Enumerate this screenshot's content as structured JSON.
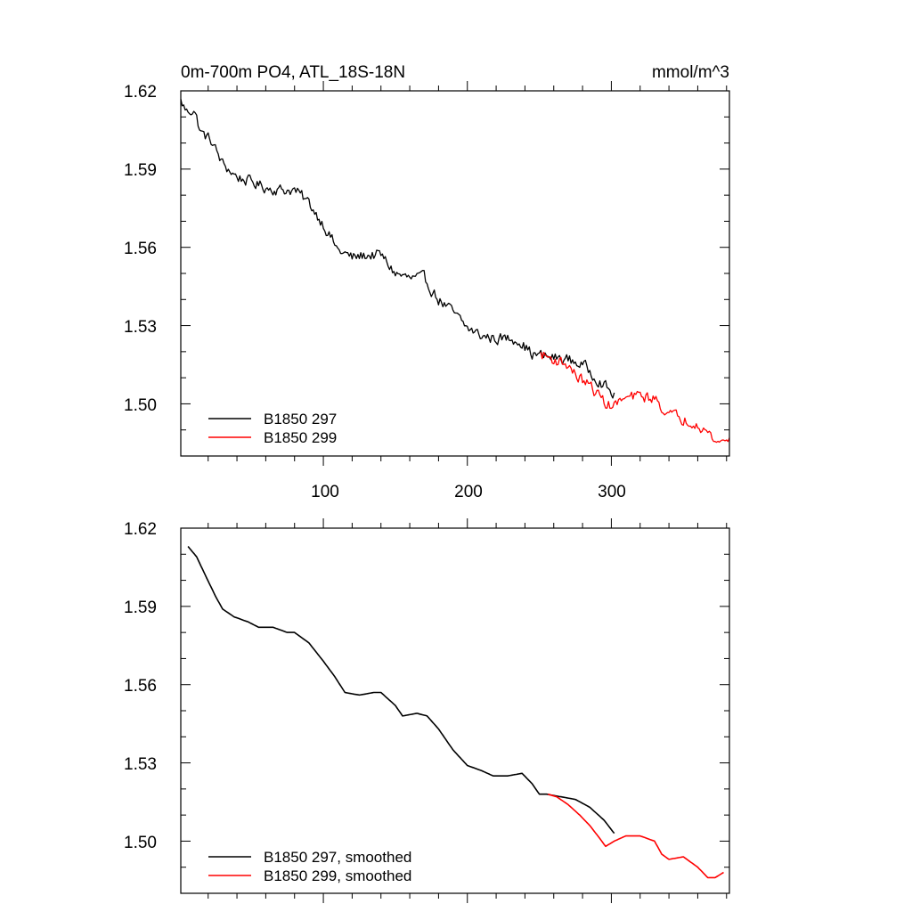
{
  "chart_data": [
    {
      "type": "line",
      "title_left": "0m-700m PO4, ATL_18S-18N",
      "title_right": "mmol/m^3",
      "xlim": [
        1,
        382
      ],
      "ylim": [
        1.48,
        1.62
      ],
      "yticks": [
        "1.62",
        "1.59",
        "1.56",
        "1.53",
        "1.50"
      ],
      "ytick_values": [
        1.62,
        1.59,
        1.56,
        1.53,
        1.5
      ],
      "xticks": [
        "100",
        "200",
        "300"
      ],
      "xtick_values": [
        100,
        200,
        300
      ],
      "legend_position": "bottom-left",
      "noise": 0.0035,
      "series": [
        {
          "name": "B1850 297",
          "color": "#000000",
          "x_start": 1,
          "x_step": 1,
          "anchors": [
            [
              1,
              1.616
            ],
            [
              5,
              1.612
            ],
            [
              10,
              1.613
            ],
            [
              15,
              1.604
            ],
            [
              22,
              1.601
            ],
            [
              30,
              1.592
            ],
            [
              40,
              1.587
            ],
            [
              50,
              1.585
            ],
            [
              60,
              1.583
            ],
            [
              70,
              1.582
            ],
            [
              80,
              1.582
            ],
            [
              90,
              1.577
            ],
            [
              100,
              1.569
            ],
            [
              110,
              1.559
            ],
            [
              120,
              1.556
            ],
            [
              130,
              1.557
            ],
            [
              140,
              1.557
            ],
            [
              150,
              1.55
            ],
            [
              160,
              1.548
            ],
            [
              170,
              1.548
            ],
            [
              180,
              1.54
            ],
            [
              190,
              1.535
            ],
            [
              200,
              1.529
            ],
            [
              210,
              1.526
            ],
            [
              220,
              1.525
            ],
            [
              235,
              1.525
            ],
            [
              245,
              1.519
            ],
            [
              255,
              1.518
            ],
            [
              270,
              1.517
            ],
            [
              280,
              1.515
            ],
            [
              290,
              1.51
            ],
            [
              302,
              1.503
            ]
          ]
        },
        {
          "name": "B1850 299",
          "color": "#ff0000",
          "x_start": 251,
          "x_step": 1,
          "anchors": [
            [
              251,
              1.519
            ],
            [
              260,
              1.517
            ],
            [
              270,
              1.515
            ],
            [
              275,
              1.511
            ],
            [
              285,
              1.507
            ],
            [
              295,
              1.501
            ],
            [
              300,
              1.499
            ],
            [
              310,
              1.502
            ],
            [
              320,
              1.503
            ],
            [
              330,
              1.502
            ],
            [
              340,
              1.496
            ],
            [
              350,
              1.494
            ],
            [
              360,
              1.493
            ],
            [
              370,
              1.487
            ],
            [
              375,
              1.485
            ],
            [
              382,
              1.487
            ]
          ]
        }
      ]
    },
    {
      "type": "line",
      "xlim": [
        1,
        382
      ],
      "ylim": [
        1.48,
        1.62
      ],
      "yticks": [
        "1.62",
        "1.59",
        "1.56",
        "1.53",
        "1.50"
      ],
      "ytick_values": [
        1.62,
        1.59,
        1.56,
        1.53,
        1.5
      ],
      "xtick_values": [
        100,
        200,
        300
      ],
      "legend_position": "bottom-left",
      "noise": 0,
      "series": [
        {
          "name": "B1850 297, smoothed",
          "color": "#000000",
          "x_start": 6,
          "x_step": 1,
          "anchors": [
            [
              6,
              1.613
            ],
            [
              12,
              1.609
            ],
            [
              18,
              1.602
            ],
            [
              25,
              1.594
            ],
            [
              30,
              1.589
            ],
            [
              38,
              1.586
            ],
            [
              48,
              1.584
            ],
            [
              55,
              1.582
            ],
            [
              65,
              1.582
            ],
            [
              75,
              1.58
            ],
            [
              80,
              1.58
            ],
            [
              90,
              1.576
            ],
            [
              100,
              1.569
            ],
            [
              108,
              1.563
            ],
            [
              115,
              1.557
            ],
            [
              125,
              1.556
            ],
            [
              135,
              1.557
            ],
            [
              140,
              1.557
            ],
            [
              150,
              1.552
            ],
            [
              155,
              1.548
            ],
            [
              165,
              1.549
            ],
            [
              172,
              1.548
            ],
            [
              180,
              1.543
            ],
            [
              190,
              1.535
            ],
            [
              200,
              1.529
            ],
            [
              210,
              1.527
            ],
            [
              218,
              1.525
            ],
            [
              228,
              1.525
            ],
            [
              238,
              1.526
            ],
            [
              245,
              1.522
            ],
            [
              250,
              1.518
            ],
            [
              255,
              1.518
            ],
            [
              265,
              1.517
            ],
            [
              275,
              1.516
            ],
            [
              285,
              1.513
            ],
            [
              295,
              1.508
            ],
            [
              302,
              1.503
            ]
          ]
        },
        {
          "name": "B1850 299, smoothed",
          "color": "#ff0000",
          "x_start": 256,
          "x_step": 1,
          "anchors": [
            [
              256,
              1.518
            ],
            [
              262,
              1.517
            ],
            [
              270,
              1.514
            ],
            [
              278,
              1.51
            ],
            [
              285,
              1.506
            ],
            [
              292,
              1.501
            ],
            [
              296,
              1.498
            ],
            [
              302,
              1.5
            ],
            [
              310,
              1.502
            ],
            [
              320,
              1.502
            ],
            [
              330,
              1.5
            ],
            [
              335,
              1.495
            ],
            [
              340,
              1.493
            ],
            [
              350,
              1.494
            ],
            [
              360,
              1.49
            ],
            [
              367,
              1.486
            ],
            [
              372,
              1.486
            ],
            [
              378,
              1.488
            ]
          ]
        }
      ]
    }
  ]
}
